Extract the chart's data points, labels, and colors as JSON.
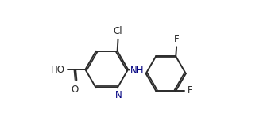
{
  "bond_color": "#2a2a2a",
  "label_color": "#2a2a2a",
  "nh_color": "#000080",
  "n_color": "#000080",
  "background": "#ffffff",
  "figsize": [
    3.36,
    1.76
  ],
  "dpi": 100,
  "lw": 1.4,
  "cl_label": "Cl",
  "f1_label": "F",
  "f2_label": "F",
  "nh_label": "NH",
  "n_label": "N",
  "ho_label": "HO",
  "o_label": "O",
  "fontsize": 8.5
}
